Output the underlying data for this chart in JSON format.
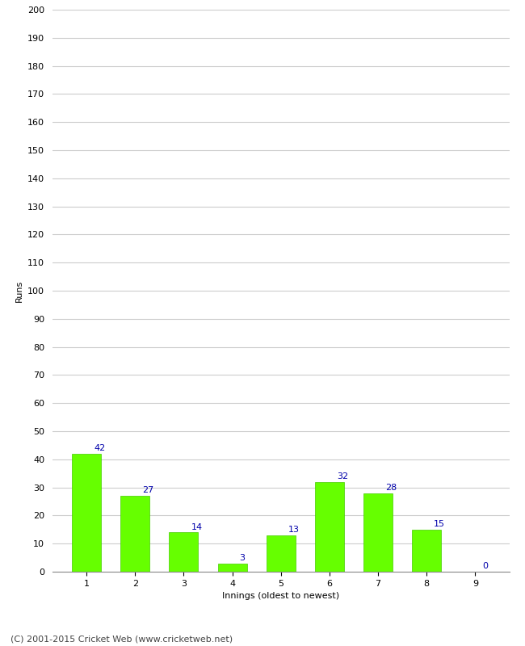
{
  "innings": [
    1,
    2,
    3,
    4,
    5,
    6,
    7,
    8,
    9
  ],
  "runs": [
    42,
    27,
    14,
    3,
    13,
    32,
    28,
    15,
    0
  ],
  "bar_color": "#66ff00",
  "bar_edge_color": "#44cc00",
  "label_color": "#0000aa",
  "xlabel": "Innings (oldest to newest)",
  "ylabel": "Runs",
  "ylim": [
    0,
    200
  ],
  "ytick_step": 10,
  "footer": "(C) 2001-2015 Cricket Web (www.cricketweb.net)",
  "footer_color": "#444444",
  "background_color": "#ffffff",
  "grid_color": "#cccccc",
  "label_fontsize": 8,
  "axis_label_fontsize": 8,
  "tick_fontsize": 8,
  "footer_fontsize": 8
}
